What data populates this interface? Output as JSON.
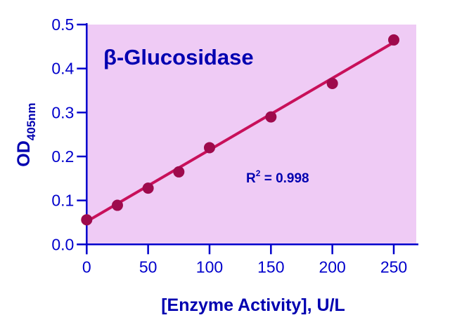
{
  "chart_data": {
    "type": "scatter",
    "title": "β-Glucosidase",
    "xlabel": "[Enzyme Activity], U/L",
    "ylabel_main": "OD",
    "ylabel_sub": "405nm",
    "annotation": {
      "r_label": "R",
      "r_sup": "2",
      "r_value": " = 0.998"
    },
    "xlim": [
      0,
      270
    ],
    "ylim": [
      0,
      0.5
    ],
    "xticks": [
      0,
      50,
      100,
      150,
      200,
      250
    ],
    "yticks": [
      "0.0",
      "0.1",
      "0.2",
      "0.3",
      "0.4",
      "0.5"
    ],
    "x": [
      0,
      25,
      50,
      75,
      100,
      150,
      200,
      250
    ],
    "y": [
      0.056,
      0.089,
      0.128,
      0.165,
      0.22,
      0.29,
      0.366,
      0.465
    ],
    "fit": {
      "intercept": 0.052,
      "slope": 0.00163
    },
    "grid": false,
    "colors": {
      "background": "#efcbf5",
      "axis": "#0000cc",
      "line": "#c8105a",
      "points": "#9e0a4c",
      "text": "#0000b0"
    }
  }
}
